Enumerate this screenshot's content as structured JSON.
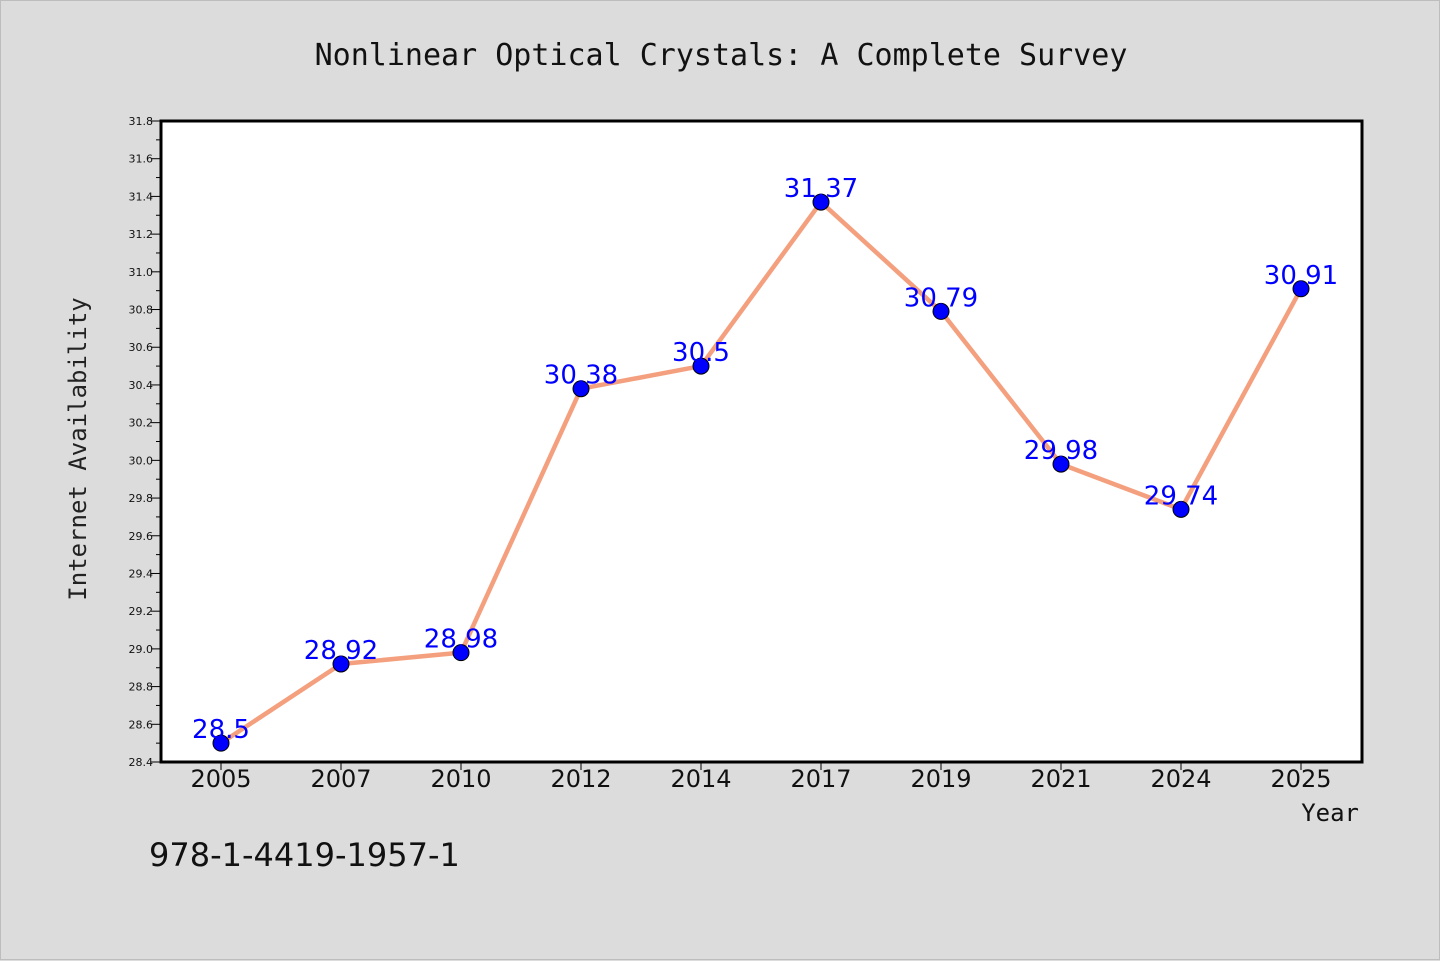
{
  "figure": {
    "background": "#dcdcdc",
    "plot_background": "#ffffff",
    "isbn": "978-1-4419-1957-1"
  },
  "chart_data": {
    "type": "line",
    "title": "Nonlinear Optical Crystals: A Complete Survey",
    "xlabel": "Year",
    "ylabel": "Internet Availability",
    "categories": [
      "2005",
      "2007",
      "2010",
      "2012",
      "2014",
      "2017",
      "2019",
      "2021",
      "2024",
      "2025"
    ],
    "series": [
      {
        "values": [
          28.5,
          28.92,
          28.98,
          30.38,
          30.5,
          31.37,
          30.79,
          29.98,
          29.74,
          30.91
        ],
        "value_labels": [
          "28.5",
          "28.92",
          "28.98",
          "30.38",
          "30.5",
          "31.37",
          "30.79",
          "29.98",
          "29.74",
          "30.91"
        ],
        "line_color": "#f4a07e",
        "marker_color": "#0000ff"
      }
    ],
    "ylim": [
      28.4,
      31.8
    ],
    "yticks": [
      "28.4",
      "28.6",
      "28.8",
      "29.0",
      "29.2",
      "29.4",
      "29.6",
      "29.8",
      "30.0",
      "30.2",
      "30.4",
      "30.6",
      "30.8",
      "31.0",
      "31.2",
      "31.4",
      "31.6",
      "31.8"
    ],
    "grid": false,
    "legend": "none"
  }
}
